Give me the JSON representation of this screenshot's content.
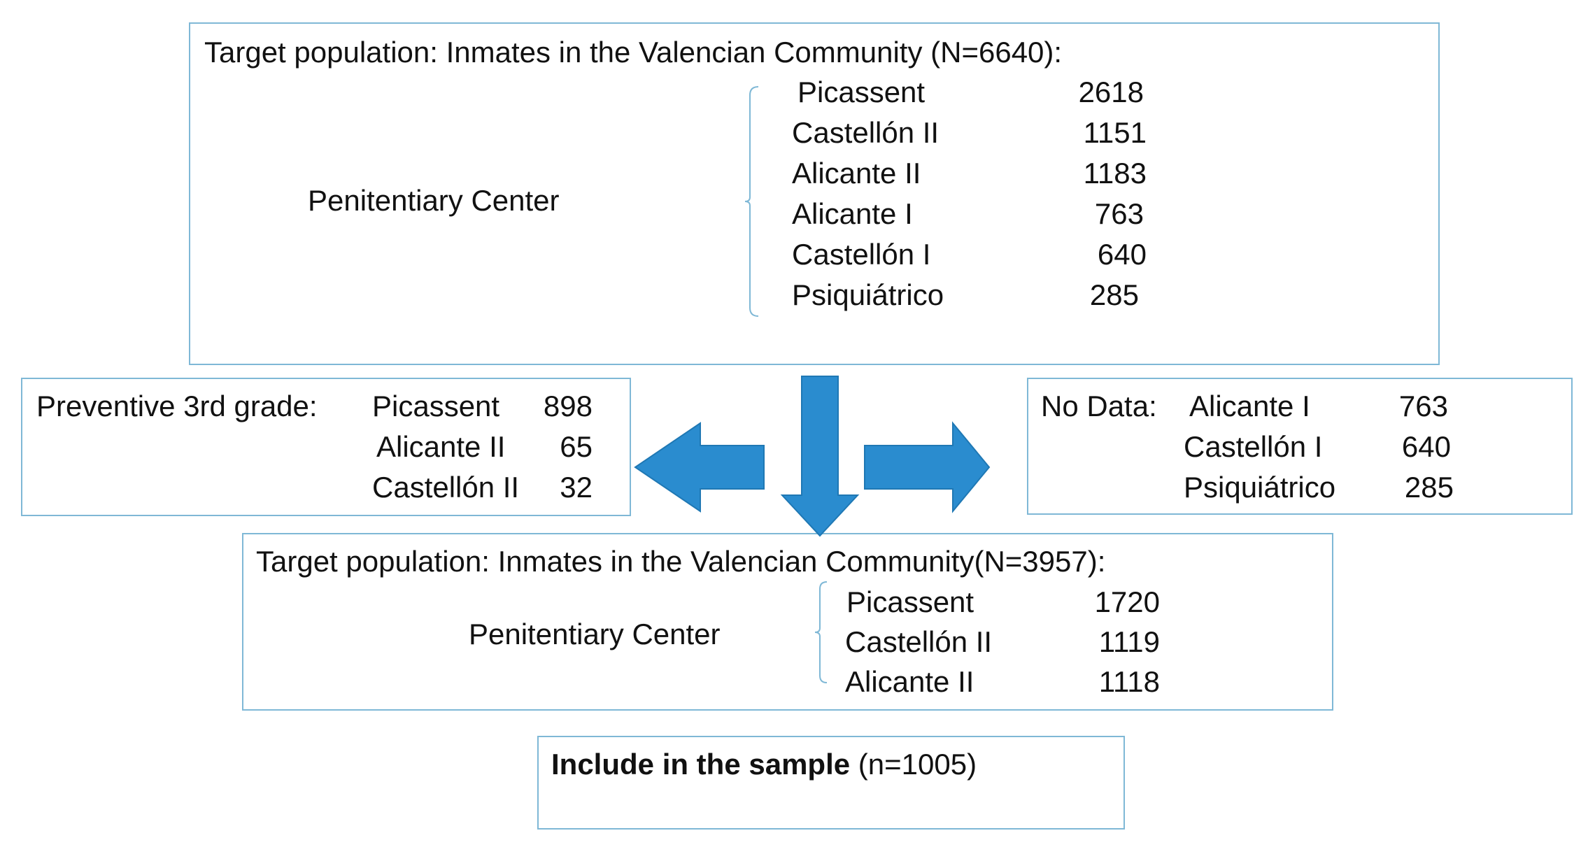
{
  "box1": {
    "title": "Target population: Inmates in the Valencian Community (N=6640):",
    "group_label": "Penitentiary Center",
    "rows": [
      {
        "name": "Picassent",
        "value": "2618"
      },
      {
        "name": "Castellón II",
        "value": "1151"
      },
      {
        "name": "Alicante II",
        "value": "1183"
      },
      {
        "name": "Alicante I",
        "value": "763"
      },
      {
        "name": "Castellón I",
        "value": "640"
      },
      {
        "name": "Psiquiátrico",
        "value": "285"
      }
    ]
  },
  "left_box": {
    "label": "Preventive 3rd grade:",
    "rows": [
      {
        "name": "Picassent",
        "value": "898"
      },
      {
        "name": "Alicante II",
        "value": "65"
      },
      {
        "name": "Castellón II",
        "value": "32"
      }
    ]
  },
  "right_box": {
    "label": "No Data:",
    "rows": [
      {
        "name": "Alicante I",
        "value": "763"
      },
      {
        "name": "Castellón I",
        "value": "640"
      },
      {
        "name": "Psiquiátrico",
        "value": "285"
      }
    ]
  },
  "box2": {
    "title": "Target population: Inmates in the Valencian Community(N=3957):",
    "group_label": "Penitentiary Center",
    "rows": [
      {
        "name": "Picassent",
        "value": "1720"
      },
      {
        "name": "Castellón II",
        "value": "1119"
      },
      {
        "name": "Alicante II",
        "value": "1118"
      }
    ]
  },
  "sample_box": {
    "bold_label": "Include in the sample",
    "count": "(n=1005)"
  },
  "colors": {
    "border": "#7fb8d6",
    "arrow": "#2a8ccf"
  }
}
